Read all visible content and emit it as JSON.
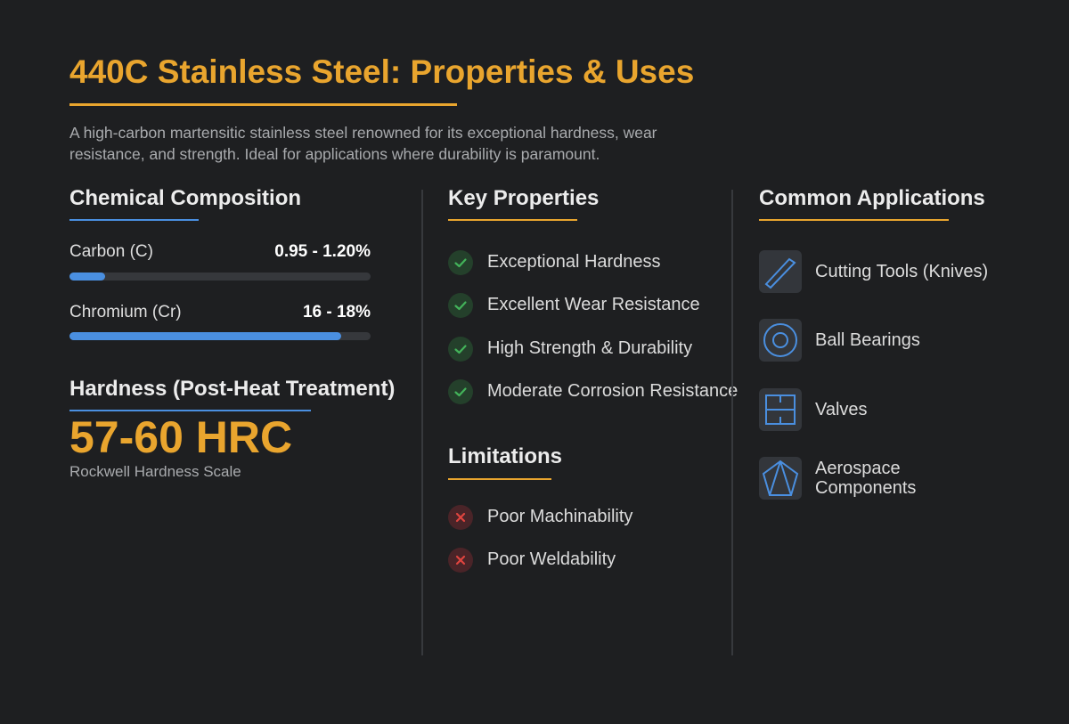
{
  "header": {
    "title": "440C Stainless Steel: Properties & Uses",
    "subtitle": "A high-carbon martensitic stainless steel renowned for its exceptional hardness, wear resistance, and strength. Ideal for applications where durability is paramount."
  },
  "composition": {
    "title": "Chemical Composition",
    "elements": [
      {
        "name": "Carbon (C)",
        "range": "0.95 - 1.20%"
      },
      {
        "name": "Chromium (Cr)",
        "range": "16 - 18%"
      }
    ]
  },
  "hardness": {
    "title": "Hardness (Post-Heat Treatment)",
    "value": "57-60 HRC",
    "scale": "Rockwell Hardness Scale"
  },
  "properties": {
    "title": "Key Properties",
    "items": [
      "Exceptional Hardness",
      "Excellent Wear Resistance",
      "High Strength & Durability",
      "Moderate Corrosion Resistance"
    ]
  },
  "limitations": {
    "title": "Limitations",
    "items": [
      "Poor Machinability",
      "Poor Weldability"
    ]
  },
  "applications": {
    "title": "Common Applications",
    "items": [
      "Cutting Tools (Knives)",
      "Ball Bearings",
      "Valves",
      "Aerospace Components"
    ]
  }
}
